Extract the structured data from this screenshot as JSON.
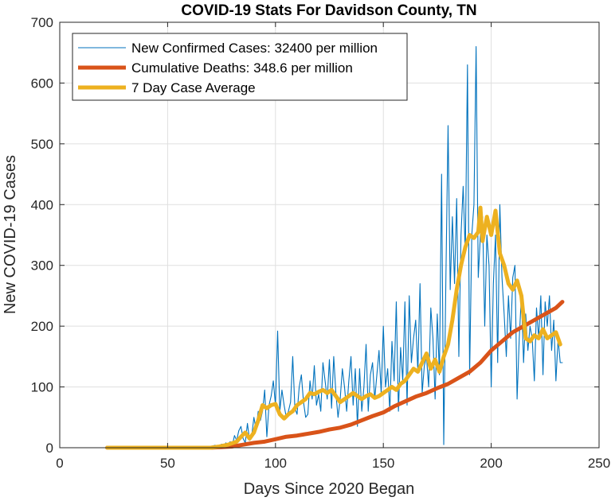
{
  "chart_data": {
    "type": "line",
    "title": "COVID-19 Stats For Davidson County, TN",
    "xlabel": "Days Since 2020 Began",
    "ylabel": "New COVID-19 Cases",
    "xlim": [
      0,
      250
    ],
    "ylim": [
      0,
      700
    ],
    "xticks": [
      0,
      50,
      100,
      150,
      200,
      250
    ],
    "xtick_labels": [
      "0",
      "50",
      "100",
      "150",
      "200",
      "250"
    ],
    "yticks": [
      0,
      100,
      200,
      300,
      400,
      500,
      600,
      700
    ],
    "ytick_labels": [
      "0",
      "100",
      "200",
      "300",
      "400",
      "500",
      "600",
      "700"
    ],
    "grid": true,
    "legend_position": "top-left",
    "series": [
      {
        "name": "New Confirmed Cases: 32400 per million",
        "color": "#0072bd",
        "x": [
          22,
          30,
          40,
          50,
          60,
          68,
          70,
          72,
          74,
          75,
          76,
          77,
          78,
          79,
          80,
          81,
          82,
          83,
          84,
          85,
          86,
          87,
          88,
          89,
          90,
          91,
          92,
          93,
          94,
          95,
          96,
          97,
          98,
          99,
          100,
          101,
          102,
          103,
          104,
          105,
          106,
          107,
          108,
          109,
          110,
          111,
          112,
          113,
          114,
          115,
          116,
          117,
          118,
          119,
          120,
          121,
          122,
          123,
          124,
          125,
          126,
          127,
          128,
          129,
          130,
          131,
          132,
          133,
          134,
          135,
          136,
          137,
          138,
          139,
          140,
          141,
          142,
          143,
          144,
          145,
          146,
          147,
          148,
          149,
          150,
          151,
          152,
          153,
          154,
          155,
          156,
          157,
          158,
          159,
          160,
          161,
          162,
          163,
          164,
          165,
          166,
          167,
          168,
          169,
          170,
          171,
          172,
          173,
          174,
          175,
          176,
          177,
          178,
          179,
          180,
          181,
          182,
          183,
          184,
          185,
          186,
          187,
          188,
          189,
          190,
          191,
          192,
          193,
          194,
          195,
          196,
          197,
          198,
          199,
          200,
          201,
          202,
          203,
          204,
          205,
          206,
          207,
          208,
          209,
          210,
          211,
          212,
          213,
          214,
          215,
          216,
          217,
          218,
          219,
          220,
          221,
          222,
          223,
          224,
          225,
          226,
          227,
          228,
          229,
          230,
          231,
          232,
          233
        ],
        "y": [
          0,
          0,
          0,
          0,
          0,
          0,
          2,
          4,
          1,
          6,
          3,
          8,
          5,
          10,
          4,
          20,
          12,
          28,
          35,
          15,
          8,
          40,
          12,
          20,
          50,
          30,
          60,
          45,
          60,
          95,
          18,
          70,
          85,
          110,
          70,
          192,
          60,
          95,
          70,
          50,
          60,
          75,
          150,
          65,
          55,
          100,
          120,
          75,
          50,
          55,
          110,
          80,
          135,
          70,
          88,
          60,
          140,
          110,
          80,
          145,
          65,
          150,
          90,
          50,
          80,
          130,
          100,
          60,
          110,
          150,
          70,
          130,
          35,
          130,
          60,
          100,
          170,
          60,
          120,
          140,
          80,
          120,
          160,
          90,
          200,
          100,
          130,
          60,
          175,
          110,
          240,
          60,
          165,
          110,
          240,
          70,
          250,
          140,
          180,
          210,
          125,
          270,
          90,
          135,
          150,
          100,
          230,
          180,
          80,
          220,
          120,
          450,
          5,
          280,
          530,
          260,
          380,
          270,
          410,
          150,
          350,
          430,
          320,
          630,
          120,
          350,
          400,
          660,
          280,
          350,
          380,
          200,
          350,
          300,
          100,
          270,
          350,
          140,
          400,
          280,
          220,
          150,
          250,
          180,
          280,
          300,
          80,
          180,
          250,
          140,
          220,
          160,
          200,
          180,
          110,
          230,
          180,
          250,
          120,
          240,
          200,
          250,
          160,
          210,
          110,
          180,
          140,
          140
        ]
      },
      {
        "name": "Cumulative Deaths: 348.6 per million",
        "color": "#d95319",
        "x": [
          22,
          60,
          70,
          80,
          85,
          90,
          95,
          100,
          105,
          110,
          115,
          120,
          125,
          130,
          135,
          140,
          145,
          150,
          155,
          160,
          165,
          170,
          175,
          180,
          185,
          190,
          195,
          200,
          205,
          210,
          215,
          220,
          225,
          230,
          233
        ],
        "y": [
          0,
          0,
          0,
          2,
          5,
          8,
          10,
          14,
          18,
          20,
          23,
          26,
          30,
          33,
          38,
          45,
          52,
          58,
          68,
          76,
          84,
          90,
          98,
          105,
          115,
          125,
          140,
          160,
          175,
          190,
          200,
          210,
          220,
          230,
          240
        ]
      },
      {
        "name": "7 Day Case Average",
        "color": "#edb120",
        "x": [
          22,
          40,
          60,
          70,
          74,
          78,
          82,
          84,
          86,
          88,
          90,
          92,
          94,
          96,
          98,
          100,
          102,
          104,
          106,
          108,
          110,
          112,
          114,
          116,
          118,
          120,
          122,
          124,
          126,
          128,
          130,
          132,
          134,
          136,
          138,
          140,
          142,
          144,
          146,
          148,
          150,
          152,
          154,
          156,
          158,
          160,
          162,
          164,
          166,
          168,
          170,
          172,
          174,
          176,
          178,
          180,
          182,
          184,
          186,
          188,
          190,
          192,
          194,
          195,
          196,
          198,
          200,
          202,
          204,
          206,
          208,
          210,
          212,
          214,
          216,
          218,
          220,
          222,
          224,
          226,
          228,
          230,
          232
        ],
        "y": [
          0,
          0,
          0,
          0,
          2,
          5,
          10,
          18,
          25,
          15,
          25,
          45,
          70,
          65,
          70,
          72,
          55,
          48,
          55,
          60,
          70,
          75,
          80,
          90,
          88,
          92,
          95,
          90,
          95,
          85,
          75,
          80,
          85,
          90,
          85,
          80,
          85,
          88,
          82,
          85,
          90,
          95,
          100,
          95,
          105,
          110,
          120,
          130,
          125,
          140,
          155,
          130,
          145,
          125,
          150,
          170,
          210,
          260,
          300,
          330,
          350,
          345,
          355,
          395,
          340,
          380,
          350,
          390,
          320,
          300,
          270,
          260,
          275,
          250,
          180,
          175,
          185,
          180,
          195,
          180,
          185,
          190,
          170
        ]
      }
    ]
  }
}
